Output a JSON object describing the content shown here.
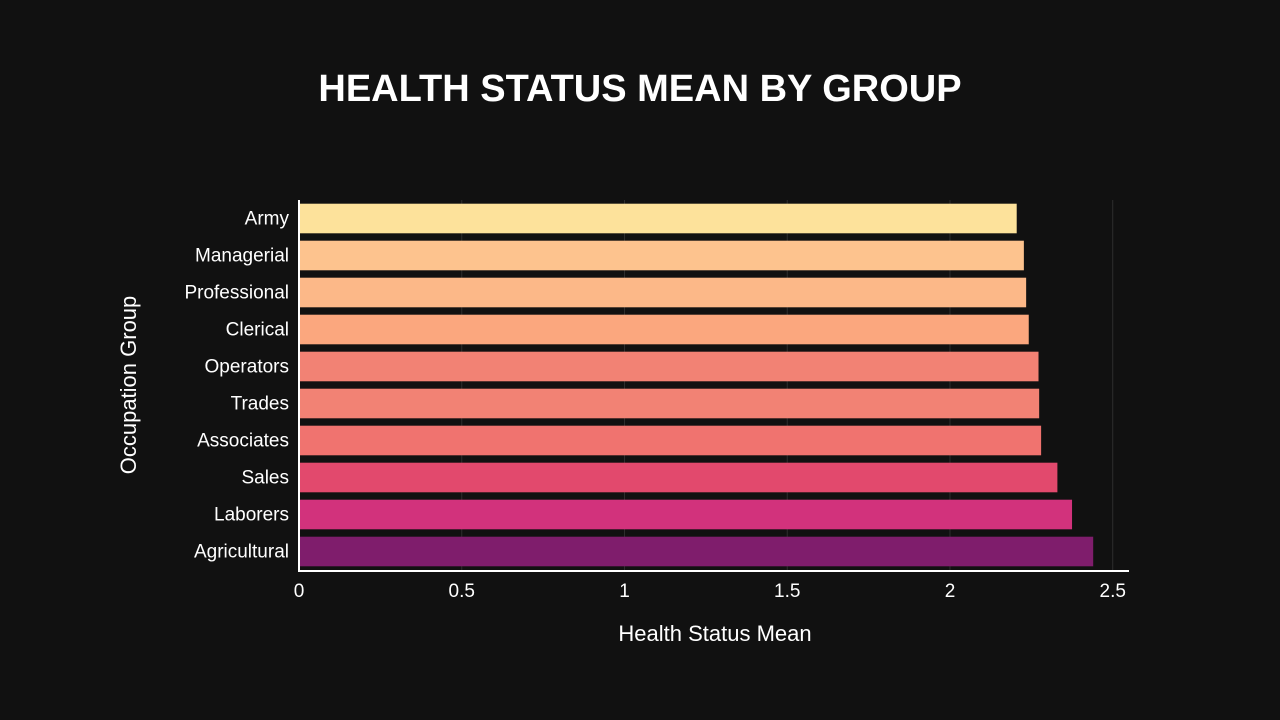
{
  "chart_data": {
    "type": "bar",
    "orientation": "horizontal",
    "title": "HEALTH STATUS MEAN BY GROUP",
    "xlabel": "Health Status Mean",
    "ylabel": "Occupation Group",
    "xlim": [
      0,
      2.55
    ],
    "xticks": [
      0,
      0.5,
      1,
      1.5,
      2,
      2.5
    ],
    "xtick_labels": [
      "0",
      "0.5",
      "1",
      "1.5",
      "2",
      "2.5"
    ],
    "grid": true,
    "categories": [
      "Army",
      "Managerial",
      "Professional",
      "Clerical",
      "Operators",
      "Trades",
      "Associates",
      "Sales",
      "Laborers",
      "Agricultural"
    ],
    "values": [
      2.205,
      2.227,
      2.234,
      2.242,
      2.272,
      2.274,
      2.28,
      2.33,
      2.375,
      2.44
    ],
    "colors": [
      "#fde29b",
      "#fdc38e",
      "#fcb888",
      "#fba77e",
      "#f28274",
      "#f28274",
      "#f0736f",
      "#e2496d",
      "#d2327c",
      "#7f1d6c"
    ]
  },
  "colors": {
    "background": "#111111",
    "text": "#ffffff",
    "grid": "#2e2e2e",
    "axis": "#ffffff"
  }
}
